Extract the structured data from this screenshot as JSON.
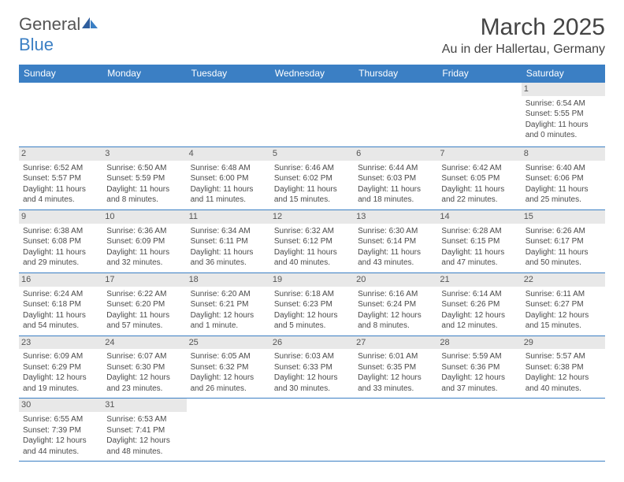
{
  "logo": {
    "text1": "General",
    "text2": "Blue"
  },
  "title": "March 2025",
  "location": "Au in der Hallertau, Germany",
  "colors": {
    "header_bg": "#3b7fc4",
    "header_text": "#ffffff",
    "daynum_bg": "#e8e8e8",
    "border": "#3b7fc4"
  },
  "columns": [
    "Sunday",
    "Monday",
    "Tuesday",
    "Wednesday",
    "Thursday",
    "Friday",
    "Saturday"
  ],
  "weeks": [
    [
      null,
      null,
      null,
      null,
      null,
      null,
      {
        "d": "1",
        "sr": "Sunrise: 6:54 AM",
        "ss": "Sunset: 5:55 PM",
        "dl1": "Daylight: 11 hours",
        "dl2": "and 0 minutes."
      }
    ],
    [
      {
        "d": "2",
        "sr": "Sunrise: 6:52 AM",
        "ss": "Sunset: 5:57 PM",
        "dl1": "Daylight: 11 hours",
        "dl2": "and 4 minutes."
      },
      {
        "d": "3",
        "sr": "Sunrise: 6:50 AM",
        "ss": "Sunset: 5:59 PM",
        "dl1": "Daylight: 11 hours",
        "dl2": "and 8 minutes."
      },
      {
        "d": "4",
        "sr": "Sunrise: 6:48 AM",
        "ss": "Sunset: 6:00 PM",
        "dl1": "Daylight: 11 hours",
        "dl2": "and 11 minutes."
      },
      {
        "d": "5",
        "sr": "Sunrise: 6:46 AM",
        "ss": "Sunset: 6:02 PM",
        "dl1": "Daylight: 11 hours",
        "dl2": "and 15 minutes."
      },
      {
        "d": "6",
        "sr": "Sunrise: 6:44 AM",
        "ss": "Sunset: 6:03 PM",
        "dl1": "Daylight: 11 hours",
        "dl2": "and 18 minutes."
      },
      {
        "d": "7",
        "sr": "Sunrise: 6:42 AM",
        "ss": "Sunset: 6:05 PM",
        "dl1": "Daylight: 11 hours",
        "dl2": "and 22 minutes."
      },
      {
        "d": "8",
        "sr": "Sunrise: 6:40 AM",
        "ss": "Sunset: 6:06 PM",
        "dl1": "Daylight: 11 hours",
        "dl2": "and 25 minutes."
      }
    ],
    [
      {
        "d": "9",
        "sr": "Sunrise: 6:38 AM",
        "ss": "Sunset: 6:08 PM",
        "dl1": "Daylight: 11 hours",
        "dl2": "and 29 minutes."
      },
      {
        "d": "10",
        "sr": "Sunrise: 6:36 AM",
        "ss": "Sunset: 6:09 PM",
        "dl1": "Daylight: 11 hours",
        "dl2": "and 32 minutes."
      },
      {
        "d": "11",
        "sr": "Sunrise: 6:34 AM",
        "ss": "Sunset: 6:11 PM",
        "dl1": "Daylight: 11 hours",
        "dl2": "and 36 minutes."
      },
      {
        "d": "12",
        "sr": "Sunrise: 6:32 AM",
        "ss": "Sunset: 6:12 PM",
        "dl1": "Daylight: 11 hours",
        "dl2": "and 40 minutes."
      },
      {
        "d": "13",
        "sr": "Sunrise: 6:30 AM",
        "ss": "Sunset: 6:14 PM",
        "dl1": "Daylight: 11 hours",
        "dl2": "and 43 minutes."
      },
      {
        "d": "14",
        "sr": "Sunrise: 6:28 AM",
        "ss": "Sunset: 6:15 PM",
        "dl1": "Daylight: 11 hours",
        "dl2": "and 47 minutes."
      },
      {
        "d": "15",
        "sr": "Sunrise: 6:26 AM",
        "ss": "Sunset: 6:17 PM",
        "dl1": "Daylight: 11 hours",
        "dl2": "and 50 minutes."
      }
    ],
    [
      {
        "d": "16",
        "sr": "Sunrise: 6:24 AM",
        "ss": "Sunset: 6:18 PM",
        "dl1": "Daylight: 11 hours",
        "dl2": "and 54 minutes."
      },
      {
        "d": "17",
        "sr": "Sunrise: 6:22 AM",
        "ss": "Sunset: 6:20 PM",
        "dl1": "Daylight: 11 hours",
        "dl2": "and 57 minutes."
      },
      {
        "d": "18",
        "sr": "Sunrise: 6:20 AM",
        "ss": "Sunset: 6:21 PM",
        "dl1": "Daylight: 12 hours",
        "dl2": "and 1 minute."
      },
      {
        "d": "19",
        "sr": "Sunrise: 6:18 AM",
        "ss": "Sunset: 6:23 PM",
        "dl1": "Daylight: 12 hours",
        "dl2": "and 5 minutes."
      },
      {
        "d": "20",
        "sr": "Sunrise: 6:16 AM",
        "ss": "Sunset: 6:24 PM",
        "dl1": "Daylight: 12 hours",
        "dl2": "and 8 minutes."
      },
      {
        "d": "21",
        "sr": "Sunrise: 6:14 AM",
        "ss": "Sunset: 6:26 PM",
        "dl1": "Daylight: 12 hours",
        "dl2": "and 12 minutes."
      },
      {
        "d": "22",
        "sr": "Sunrise: 6:11 AM",
        "ss": "Sunset: 6:27 PM",
        "dl1": "Daylight: 12 hours",
        "dl2": "and 15 minutes."
      }
    ],
    [
      {
        "d": "23",
        "sr": "Sunrise: 6:09 AM",
        "ss": "Sunset: 6:29 PM",
        "dl1": "Daylight: 12 hours",
        "dl2": "and 19 minutes."
      },
      {
        "d": "24",
        "sr": "Sunrise: 6:07 AM",
        "ss": "Sunset: 6:30 PM",
        "dl1": "Daylight: 12 hours",
        "dl2": "and 23 minutes."
      },
      {
        "d": "25",
        "sr": "Sunrise: 6:05 AM",
        "ss": "Sunset: 6:32 PM",
        "dl1": "Daylight: 12 hours",
        "dl2": "and 26 minutes."
      },
      {
        "d": "26",
        "sr": "Sunrise: 6:03 AM",
        "ss": "Sunset: 6:33 PM",
        "dl1": "Daylight: 12 hours",
        "dl2": "and 30 minutes."
      },
      {
        "d": "27",
        "sr": "Sunrise: 6:01 AM",
        "ss": "Sunset: 6:35 PM",
        "dl1": "Daylight: 12 hours",
        "dl2": "and 33 minutes."
      },
      {
        "d": "28",
        "sr": "Sunrise: 5:59 AM",
        "ss": "Sunset: 6:36 PM",
        "dl1": "Daylight: 12 hours",
        "dl2": "and 37 minutes."
      },
      {
        "d": "29",
        "sr": "Sunrise: 5:57 AM",
        "ss": "Sunset: 6:38 PM",
        "dl1": "Daylight: 12 hours",
        "dl2": "and 40 minutes."
      }
    ],
    [
      {
        "d": "30",
        "sr": "Sunrise: 6:55 AM",
        "ss": "Sunset: 7:39 PM",
        "dl1": "Daylight: 12 hours",
        "dl2": "and 44 minutes."
      },
      {
        "d": "31",
        "sr": "Sunrise: 6:53 AM",
        "ss": "Sunset: 7:41 PM",
        "dl1": "Daylight: 12 hours",
        "dl2": "and 48 minutes."
      },
      null,
      null,
      null,
      null,
      null
    ]
  ]
}
